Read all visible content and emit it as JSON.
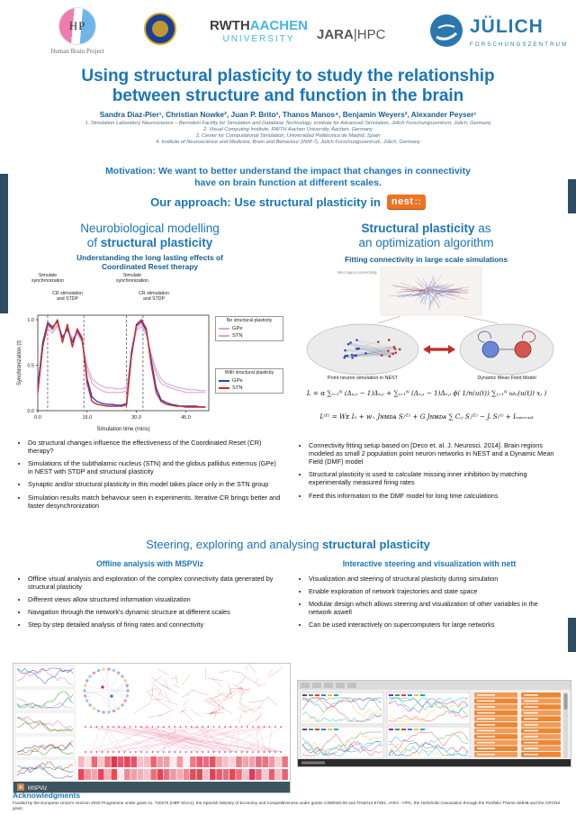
{
  "poster": {
    "title_line1": "Using structural plasticity to study the relationship",
    "title_line2": "between structure and function in the brain",
    "authors": "Sandra Diaz-Pier¹, Christian Nowke², Juan P. Brito³, Thanos Manos⁴, Benjamin Weyers², Alexander Peyser¹",
    "affiliations": [
      "1. Simulation Laboratory Neuroscience – Bernstein Facility for Simulation and Database Technology, Institute for Advanced Simulation, Jülich Forschungszentrum, Jülich, Germany",
      "2. Visual Computing Institute, RWTH Aachen University, Aachen, Germany",
      "3. Center for Computational Simulation, Universidad Politécnica de Madrid, Spain",
      "4. Institute of Neuroscience and Medicine, Brain and Behaviour (INM-7), Jülich Forschungszentrum, Jülich, Germany"
    ],
    "motivation_line1": "Motivation: We want to better understand the impact that changes in connectivity",
    "motivation_line2": "have on brain function at different scales.",
    "approach_text": "Our approach: Use structural plasticity in"
  },
  "logos": {
    "hbp_initials": "HP",
    "hbp_caption": "Human Brain Project",
    "rwth_dark": "RWTH",
    "rwth_light": "AACHEN",
    "rwth_line2": "UNIVERSITY",
    "jara_main": "JARA",
    "jara_sep": "|",
    "jara_sub": "HPC",
    "juelich_name": "JÜLICH",
    "juelich_sub": "FORSCHUNGSZENTRUM",
    "nest_text": "nest",
    "nest_colons": "::"
  },
  "left_col": {
    "heading_line1": "Neurobiological modelling",
    "heading_line2_normal": "of ",
    "heading_line2_bold": "structural plasticity",
    "subheading_line1": "Understanding the long lasting effects of",
    "subheading_line2": "Coordinated Reset therapy",
    "bullets": [
      "Do structural changes influence the effectiveness of the Coordinated Reset (CR) therapy?",
      "Simulations of the subthalamic nucleus (STN) and the globus pallidus externus (GPe) in NEST with STDP and structural plasticity",
      "Synaptic and/or structural plasticity in this model takes place only in the STN group",
      "Simulation results match behaviour seen in experiments. Iterative CR brings better and faster desynchronization"
    ]
  },
  "chart_data": {
    "type": "line",
    "title": "",
    "xlabel": "Simulation time (mins)",
    "ylabel": "Synchronization  (t)",
    "xlim": [
      0,
      52
    ],
    "ylim": [
      0.0,
      1.05
    ],
    "xticks": [
      0.0,
      15.0,
      30.0,
      45.0
    ],
    "yticks": [
      0.0,
      0.5,
      1.0
    ],
    "dashed_x": [
      3,
      14,
      27,
      32
    ],
    "grid": false,
    "legend_position": "right",
    "annotations": [
      "Simulate\nsynchronization",
      "CR stimulation\nand STDP",
      "Simulate\nsynchronization",
      "CR stimulation\nand STDP"
    ],
    "x": [
      0,
      1.5,
      3,
      4.5,
      6,
      7.5,
      9,
      10.5,
      12,
      13.5,
      15,
      16.5,
      18,
      19.5,
      21,
      22.5,
      24,
      25.5,
      27,
      28.5,
      30,
      31.5,
      33,
      34.5,
      36,
      37.5,
      39,
      40.5,
      42,
      43.5,
      45,
      46.5,
      48,
      49.5,
      51
    ],
    "series": [
      {
        "name": "GPe (no structural plasticity)",
        "color": "#c6aee0",
        "width": 1.1,
        "values": [
          0.25,
          0.72,
          0.9,
          0.85,
          0.93,
          0.82,
          0.88,
          0.8,
          0.84,
          0.76,
          0.5,
          0.35,
          0.3,
          0.27,
          0.25,
          0.25,
          0.24,
          0.24,
          0.26,
          0.62,
          0.88,
          0.92,
          0.83,
          0.62,
          0.45,
          0.35,
          0.3,
          0.28,
          0.26,
          0.25,
          0.24,
          0.23,
          0.23,
          0.22,
          0.22
        ]
      },
      {
        "name": "STN (no structural plasticity)",
        "color": "#f29fc4",
        "width": 1.1,
        "values": [
          0.2,
          0.7,
          0.93,
          0.88,
          0.95,
          0.8,
          0.9,
          0.78,
          0.85,
          0.75,
          0.45,
          0.3,
          0.25,
          0.22,
          0.2,
          0.2,
          0.2,
          0.2,
          0.22,
          0.6,
          0.9,
          0.95,
          0.85,
          0.6,
          0.4,
          0.3,
          0.27,
          0.25,
          0.23,
          0.22,
          0.2,
          0.2,
          0.2,
          0.2,
          0.2
        ]
      },
      {
        "name": "GPe (with structural plasticity)",
        "color": "#2743c9",
        "width": 1.4,
        "values": [
          0.25,
          0.75,
          0.97,
          0.92,
          0.98,
          0.8,
          0.9,
          0.75,
          0.88,
          0.78,
          0.35,
          0.15,
          0.1,
          0.08,
          0.07,
          0.07,
          0.06,
          0.06,
          0.08,
          0.65,
          0.93,
          0.98,
          0.88,
          0.55,
          0.25,
          0.12,
          0.09,
          0.07,
          0.06,
          0.05,
          0.05,
          0.05,
          0.05,
          0.04,
          0.04
        ]
      },
      {
        "name": "STN (with structural plasticity)",
        "color": "#d4291e",
        "width": 1.4,
        "values": [
          0.2,
          0.7,
          0.95,
          0.9,
          1.0,
          0.75,
          0.95,
          0.7,
          0.9,
          0.8,
          0.3,
          0.1,
          0.07,
          0.06,
          0.05,
          0.05,
          0.05,
          0.05,
          0.06,
          0.6,
          0.95,
          1.0,
          0.9,
          0.5,
          0.2,
          0.1,
          0.07,
          0.06,
          0.05,
          0.05,
          0.04,
          0.04,
          0.04,
          0.04,
          0.04
        ]
      }
    ],
    "legends": [
      {
        "title": "No structural plasticity",
        "entries": [
          {
            "label": "GPe",
            "color": "#c6aee0"
          },
          {
            "label": "STN",
            "color": "#f29fc4"
          }
        ]
      },
      {
        "title": "With structural plasticity",
        "entries": [
          {
            "label": "GPe",
            "color": "#2743c9"
          },
          {
            "label": "STN",
            "color": "#d4291e"
          }
        ]
      }
    ]
  },
  "right_col": {
    "heading_line1_bold": "Structural plasticity",
    "heading_line1_normal": " as",
    "heading_line2": "an optimization algorithm",
    "subheading": "Fitting connectivity in large scale simulations",
    "figure": {
      "dti_caption": "Inter region connectivity",
      "left_label": "Point neuron simulation in NEST",
      "right_label": "Dynamic Mean Field Model"
    },
    "equation1": "L = α ∑ᵢ₌₁ᴺ (Δₑ,ᵢ − 1)Δₑ,ᵢ + ∑ᵢ₌₁ᴺ (Δₑ,ᵢ − 1)Δₑ,ᵢ ϕ( 1∕n(u(t)) ∑ⱼ₌₁ᴺ ωᵢⱼ(u(t)) xⱼ )",
    "equation2": "Iᵢ⁽ᴱ⁾ = Wᴇ I₀ + w₊ Jɴᴍᴅᴀ Sᵢ⁽ᴱ⁾ + G Jɴᴍᴅᴀ ∑ Cᵢⱼ Sⱼ⁽ᴱ⁾ − Jᵢ Sᵢ⁽ᴵ⁾ + Iₑₓₜₑᵣₙₐₗ",
    "bullets": [
      "Connectivity fitting setup based on [Deco et. al. J. Neurosci. 2014]. Brain regions modeled as small 2 population point neuron networks in NEST and a Dynamic Mean Field (DMF) model",
      "Structural plasticity is used to calculate missing inner inhibition by matching experimentally measured firing rates",
      "Feed this information to the DMF model for long time calculations"
    ]
  },
  "section2": {
    "heading_normal": "Steering, exploring and analysing ",
    "heading_bold": "structural plasticity",
    "left": {
      "heading": "Offline analysis with MSPViz",
      "bullets": [
        "Offline visual analysis and exploration of the complex connectivity data generated by structural plasticity",
        "Different views allow structured information visualization",
        "Navigation through the network's dynamic structure at different scales",
        "Step by step detailed analysis of firing rates and connectivity"
      ]
    },
    "right": {
      "heading": "Interactive steering and visualization with nett",
      "bullets": [
        "Visualization and steering of structural plasticity during simulation",
        "Enable exploration of network trajectories and state space",
        "Modular design which allows steering and visualization of other variables in the network aswell",
        "Can be used interactively on supercomputers for large networks"
      ]
    }
  },
  "screenshots": {
    "mspviz": {
      "logo_text": "MSPViz",
      "scribble_red": "#c62828",
      "link_pink": "#ef9ab5",
      "bottom_bar": "#3d5560"
    },
    "nett": {
      "accent_orange": "#ef8632",
      "accent_orange_light": "#f29b55",
      "panel_gray": "#dcdcdc",
      "status_bar": "#2b2b2b"
    }
  },
  "acknowledgments": {
    "heading": "Acknowledgments",
    "text": "Funded by the European Union's Horizon 2020 Programme under grant no. 720270 (HBP SGA1), the Spanish Ministry of Economy and Competitiveness under grants C080020-09 and TIN2014-57481, JARA - HPC, the Helmholtz Association through the Portfolio Theme SMHB and the CRCNS grant."
  },
  "colors": {
    "title_blue": "#1b75bb",
    "dark_blue": "#135e92",
    "accent_bar": "#2e4d63",
    "nest_orange": "#ee7125"
  }
}
